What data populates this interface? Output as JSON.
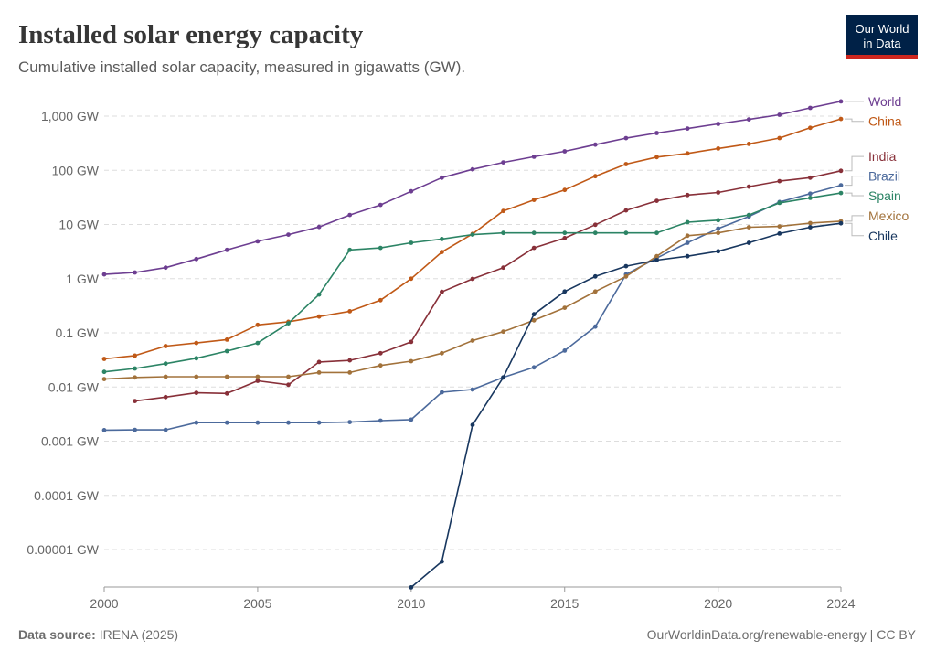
{
  "header": {
    "title": "Installed solar energy capacity",
    "subtitle": "Cumulative installed solar capacity, measured in gigawatts (GW).",
    "logo_line1": "Our World",
    "logo_line2": "in Data"
  },
  "footer": {
    "source_label": "Data source:",
    "source_value": "IRENA (2025)",
    "credit": "OurWorldinData.org/renewable-energy | CC BY"
  },
  "colors": {
    "World": "#6d3e91",
    "China": "#c05917",
    "India": "#883039",
    "Brazil": "#4c6a9c",
    "Spain": "#2c8465",
    "Mexico": "#a2723b",
    "Chile": "#18375f"
  },
  "chart_data": {
    "type": "line",
    "y_scale": "log",
    "ylim": [
      1e-06,
      2000
    ],
    "xlim": [
      2000,
      2024
    ],
    "x_ticks": [
      2000,
      2005,
      2010,
      2015,
      2020,
      2024
    ],
    "x_tick_labels": [
      "2000",
      "2005",
      "2010",
      "2015",
      "2020",
      "2024"
    ],
    "y_ticks": [
      1e-05,
      0.0001,
      0.001,
      0.01,
      0.1,
      1,
      10,
      100,
      1000
    ],
    "y_tick_labels": [
      "0.00001 GW",
      "0.0001 GW",
      "0.001 GW",
      "0.01 GW",
      "0.1 GW",
      "1 GW",
      "10 GW",
      "100 GW",
      "1,000 GW"
    ],
    "grid": "horizontal dashed",
    "legend": "right end labels",
    "series": [
      {
        "name": "World",
        "x": [
          2000,
          2001,
          2002,
          2003,
          2004,
          2005,
          2006,
          2007,
          2008,
          2009,
          2010,
          2011,
          2012,
          2013,
          2014,
          2015,
          2016,
          2017,
          2018,
          2019,
          2020,
          2021,
          2022,
          2023,
          2024
        ],
        "y": [
          1.2,
          1.3,
          1.6,
          2.3,
          3.4,
          4.9,
          6.5,
          9,
          15,
          23,
          41,
          73,
          104,
          140,
          178,
          224,
          297,
          392,
          488,
          590,
          720,
          870,
          1060,
          1420,
          1870
        ]
      },
      {
        "name": "China",
        "x": [
          2000,
          2001,
          2002,
          2003,
          2004,
          2005,
          2006,
          2007,
          2008,
          2009,
          2010,
          2011,
          2012,
          2013,
          2014,
          2015,
          2016,
          2017,
          2018,
          2019,
          2020,
          2021,
          2022,
          2023,
          2024
        ],
        "y": [
          0.033,
          0.038,
          0.057,
          0.065,
          0.075,
          0.14,
          0.16,
          0.2,
          0.25,
          0.4,
          1.0,
          3.1,
          6.7,
          17.8,
          28.4,
          43.5,
          77.8,
          130,
          175,
          205,
          253,
          307,
          393,
          609,
          887
        ]
      },
      {
        "name": "India",
        "x": [
          2001,
          2002,
          2003,
          2004,
          2005,
          2006,
          2007,
          2008,
          2009,
          2010,
          2011,
          2012,
          2013,
          2014,
          2015,
          2016,
          2017,
          2018,
          2019,
          2020,
          2021,
          2022,
          2023,
          2024
        ],
        "y": [
          0.0055,
          0.0065,
          0.0078,
          0.0076,
          0.013,
          0.011,
          0.029,
          0.031,
          0.042,
          0.068,
          0.57,
          0.99,
          1.6,
          3.7,
          5.6,
          9.9,
          18.2,
          27.4,
          35,
          39,
          50,
          63,
          73,
          98
        ]
      },
      {
        "name": "Brazil",
        "x": [
          2000,
          2001,
          2002,
          2003,
          2004,
          2005,
          2006,
          2007,
          2008,
          2009,
          2010,
          2011,
          2012,
          2013,
          2014,
          2015,
          2016,
          2017,
          2018,
          2019,
          2020,
          2021,
          2022,
          2023,
          2024
        ],
        "y": [
          0.0016,
          0.00162,
          0.00162,
          0.0022,
          0.0022,
          0.0022,
          0.0022,
          0.0022,
          0.00225,
          0.0024,
          0.0025,
          0.008,
          0.009,
          0.015,
          0.023,
          0.047,
          0.13,
          1.2,
          2.4,
          4.6,
          8.4,
          14,
          26,
          37,
          53
        ]
      },
      {
        "name": "Spain",
        "x": [
          2000,
          2001,
          2002,
          2003,
          2004,
          2005,
          2006,
          2007,
          2008,
          2009,
          2010,
          2011,
          2012,
          2013,
          2014,
          2015,
          2016,
          2017,
          2018,
          2019,
          2020,
          2021,
          2022,
          2023,
          2024
        ],
        "y": [
          0.019,
          0.022,
          0.027,
          0.034,
          0.046,
          0.065,
          0.15,
          0.51,
          3.4,
          3.7,
          4.6,
          5.4,
          6.5,
          7,
          7,
          7,
          7,
          7,
          7,
          11,
          12,
          15,
          25,
          31,
          38
        ]
      },
      {
        "name": "Mexico",
        "x": [
          2000,
          2001,
          2002,
          2003,
          2004,
          2005,
          2006,
          2007,
          2008,
          2009,
          2010,
          2011,
          2012,
          2013,
          2014,
          2015,
          2016,
          2017,
          2018,
          2019,
          2020,
          2021,
          2022,
          2023,
          2024
        ],
        "y": [
          0.014,
          0.015,
          0.0155,
          0.0155,
          0.0155,
          0.0155,
          0.0155,
          0.0185,
          0.0185,
          0.025,
          0.03,
          0.042,
          0.072,
          0.105,
          0.17,
          0.29,
          0.58,
          1.1,
          2.6,
          6.2,
          7.0,
          8.9,
          9.2,
          10.6,
          11.5
        ]
      },
      {
        "name": "Chile",
        "x": [
          2010,
          2011,
          2012,
          2013,
          2014,
          2015,
          2016,
          2017,
          2018,
          2019,
          2020,
          2021,
          2022,
          2023,
          2024
        ],
        "y": [
          2e-06,
          6e-06,
          0.002,
          0.015,
          0.22,
          0.58,
          1.1,
          1.7,
          2.2,
          2.6,
          3.2,
          4.6,
          6.8,
          8.9,
          10.5
        ]
      }
    ],
    "end_labels": [
      {
        "name": "World",
        "label_value": 1870,
        "label_y_value": 1870
      },
      {
        "name": "China",
        "label_value": 887,
        "label_y_value": 800
      },
      {
        "name": "India",
        "label_value": 98,
        "label_y_value": 180
      },
      {
        "name": "Brazil",
        "label_value": 53,
        "label_y_value": 78
      },
      {
        "name": "Spain",
        "label_value": 38,
        "label_y_value": 34
      },
      {
        "name": "Mexico",
        "label_value": 11.5,
        "label_y_value": 14.5
      },
      {
        "name": "Chile",
        "label_value": 10.5,
        "label_y_value": 6.2
      }
    ]
  }
}
